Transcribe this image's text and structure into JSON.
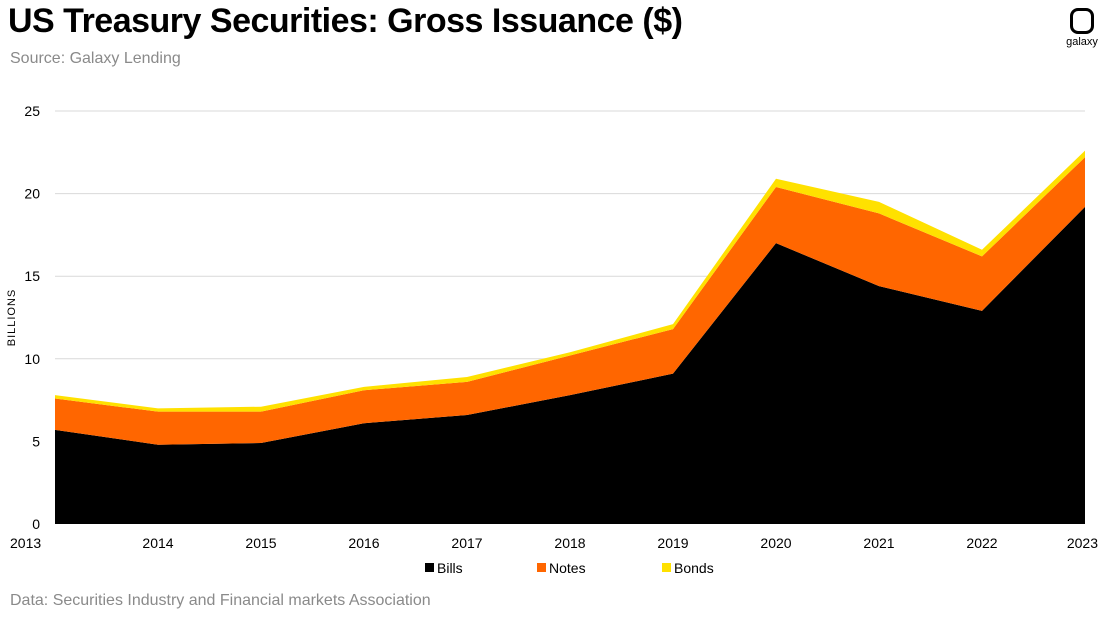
{
  "header": {
    "title": "US Treasury Securities: Gross Issuance  ($)",
    "subtitle": "Source: Galaxy Lending"
  },
  "footer": {
    "note": "Data: Securities Industry and Financial markets Association"
  },
  "logo": {
    "text": "galaxy",
    "icon": "galaxy-logo-icon"
  },
  "colors": {
    "bills": "#000000",
    "notes": "#ff6600",
    "bonds": "#ffe100",
    "grid": "#d9d9d9"
  },
  "chart_data": {
    "type": "area",
    "stacked": true,
    "title": "US Treasury Securities: Gross Issuance  ($)",
    "xlabel": "",
    "ylabel": "BILLIONS",
    "x": [
      "2013",
      "2014",
      "2015",
      "2016",
      "2017",
      "2018",
      "2019",
      "2020",
      "2021",
      "2022",
      "2023"
    ],
    "yticks": [
      0,
      5,
      10,
      15,
      20,
      25
    ],
    "ylim": [
      0,
      25
    ],
    "grid": true,
    "legend_position": "bottom-center",
    "series": [
      {
        "name": "Bills",
        "values": [
          5.7,
          4.8,
          4.9,
          6.1,
          6.6,
          7.8,
          9.1,
          17.0,
          14.4,
          12.9,
          19.2
        ]
      },
      {
        "name": "Notes",
        "values": [
          1.9,
          2.0,
          1.9,
          2.0,
          2.0,
          2.4,
          2.7,
          3.4,
          4.4,
          3.3,
          3.0
        ]
      },
      {
        "name": "Bonds",
        "values": [
          0.2,
          0.2,
          0.3,
          0.2,
          0.3,
          0.2,
          0.3,
          0.5,
          0.7,
          0.4,
          0.4
        ]
      }
    ]
  }
}
